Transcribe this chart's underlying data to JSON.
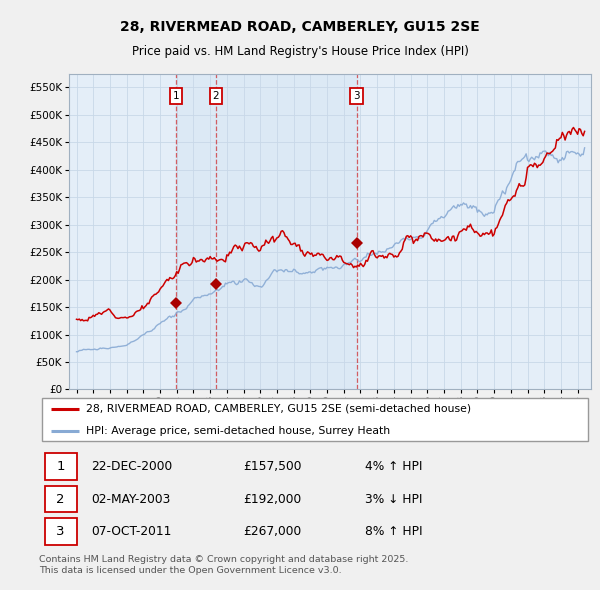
{
  "title1": "28, RIVERMEAD ROAD, CAMBERLEY, GU15 2SE",
  "title2": "Price paid vs. HM Land Registry's House Price Index (HPI)",
  "legend_line1": "28, RIVERMEAD ROAD, CAMBERLEY, GU15 2SE (semi-detached house)",
  "legend_line2": "HPI: Average price, semi-detached house, Surrey Heath",
  "footer": "Contains HM Land Registry data © Crown copyright and database right 2025.\nThis data is licensed under the Open Government Licence v3.0.",
  "sale_labels": [
    "1",
    "2",
    "3"
  ],
  "sale_dates_str": [
    "22-DEC-2000",
    "02-MAY-2003",
    "07-OCT-2011"
  ],
  "sale_prices_str": [
    "£157,500",
    "£192,000",
    "£267,000"
  ],
  "sale_hpi_str": [
    "4% ↑ HPI",
    "3% ↓ HPI",
    "8% ↑ HPI"
  ],
  "sale_years": [
    2000.97,
    2003.34,
    2011.77
  ],
  "sale_prices": [
    157500,
    192000,
    267000
  ],
  "ylim": [
    0,
    575000
  ],
  "yticks": [
    0,
    50000,
    100000,
    150000,
    200000,
    250000,
    300000,
    350000,
    400000,
    450000,
    500000,
    550000
  ],
  "ytick_labels": [
    "£0",
    "£50K",
    "£100K",
    "£150K",
    "£200K",
    "£250K",
    "£300K",
    "£350K",
    "£400K",
    "£450K",
    "£500K",
    "£550K"
  ],
  "line_color_red": "#cc0000",
  "line_color_blue": "#88aad4",
  "sale_marker_color": "#aa0000",
  "shade_color": "#dae8f5",
  "grid_color": "#c8d8e8",
  "chart_bg": "#e4eef8",
  "fig_bg": "#f0f0f0"
}
